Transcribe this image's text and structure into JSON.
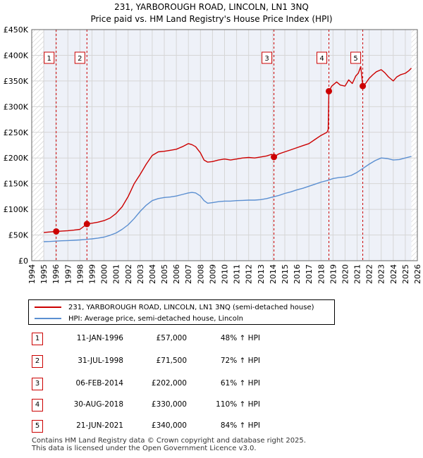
{
  "chart_data": {
    "type": "line",
    "title": "231, YARBOROUGH ROAD, LINCOLN, LN1 3NQ",
    "subtitle": "Price paid vs. HM Land Registry's House Price Index (HPI)",
    "xlim": [
      1994,
      2026
    ],
    "ylim": [
      0,
      450000
    ],
    "x_ticks": [
      1994,
      1995,
      1996,
      1997,
      1998,
      1999,
      2000,
      2001,
      2002,
      2003,
      2004,
      2005,
      2006,
      2007,
      2008,
      2009,
      2010,
      2011,
      2012,
      2013,
      2014,
      2015,
      2016,
      2017,
      2018,
      2019,
      2020,
      2021,
      2022,
      2023,
      2024,
      2025,
      2026
    ],
    "y_ticks": [
      {
        "value": 0,
        "label": "£0"
      },
      {
        "value": 50000,
        "label": "£50K"
      },
      {
        "value": 100000,
        "label": "£100K"
      },
      {
        "value": 150000,
        "label": "£150K"
      },
      {
        "value": 200000,
        "label": "£200K"
      },
      {
        "value": 250000,
        "label": "£250K"
      },
      {
        "value": 300000,
        "label": "£300K"
      },
      {
        "value": 350000,
        "label": "£350K"
      },
      {
        "value": 400000,
        "label": "£400K"
      },
      {
        "value": 450000,
        "label": "£450K"
      }
    ],
    "data_range": [
      1995,
      2025.5
    ],
    "series": [
      {
        "name": "231, YARBOROUGH ROAD, LINCOLN, LN1 3NQ (semi-detached house)",
        "color": "#cc0000",
        "x": [
          1995.0,
          1995.5,
          1996.03,
          1996.5,
          1997.0,
          1997.5,
          1998.0,
          1998.58,
          1999.0,
          1999.5,
          2000.0,
          2000.5,
          2001.0,
          2001.5,
          2002.0,
          2002.5,
          2003.0,
          2003.5,
          2004.0,
          2004.5,
          2005.0,
          2005.5,
          2006.0,
          2006.5,
          2007.0,
          2007.3,
          2007.6,
          2008.0,
          2008.3,
          2008.6,
          2009.0,
          2009.5,
          2010.0,
          2010.5,
          2011.0,
          2011.5,
          2012.0,
          2012.5,
          2013.0,
          2013.5,
          2013.9,
          2014.1,
          2014.5,
          2015.0,
          2015.5,
          2016.0,
          2016.5,
          2017.0,
          2017.5,
          2018.0,
          2018.5,
          2018.6,
          2018.66,
          2018.9,
          2019.3,
          2019.6,
          2020.0,
          2020.3,
          2020.6,
          2020.9,
          2021.1,
          2021.3,
          2021.47,
          2021.7,
          2022.0,
          2022.3,
          2022.6,
          2023.0,
          2023.3,
          2023.6,
          2024.0,
          2024.3,
          2024.6,
          2025.0,
          2025.3,
          2025.5
        ],
        "y": [
          55000,
          56000,
          57000,
          57800,
          58500,
          59500,
          61000,
          71500,
          73000,
          75000,
          78000,
          83000,
          92000,
          105000,
          125000,
          150000,
          168000,
          188000,
          205000,
          212000,
          213000,
          215000,
          217000,
          222000,
          228000,
          226000,
          222000,
          210000,
          196000,
          192000,
          193000,
          196000,
          198000,
          196000,
          198000,
          200000,
          201000,
          200000,
          202000,
          204000,
          207000,
          202000,
          208000,
          212000,
          216000,
          220000,
          224000,
          228000,
          236000,
          244000,
          250000,
          255000,
          330000,
          340000,
          348000,
          342000,
          340000,
          352000,
          345000,
          360000,
          365000,
          378000,
          340000,
          345000,
          355000,
          362000,
          368000,
          372000,
          366000,
          358000,
          350000,
          358000,
          362000,
          365000,
          370000,
          375000
        ]
      },
      {
        "name": "HPI: Average price, semi-detached house, Lincoln",
        "color": "#5b8fd1",
        "x": [
          1995.0,
          1995.5,
          1996.0,
          1996.5,
          1997.0,
          1997.5,
          1998.0,
          1998.5,
          1999.0,
          1999.5,
          2000.0,
          2000.5,
          2001.0,
          2001.5,
          2002.0,
          2002.5,
          2003.0,
          2003.5,
          2004.0,
          2004.5,
          2005.0,
          2005.5,
          2006.0,
          2006.5,
          2007.0,
          2007.3,
          2007.6,
          2008.0,
          2008.3,
          2008.6,
          2009.0,
          2009.5,
          2010.0,
          2010.5,
          2011.0,
          2011.5,
          2012.0,
          2012.5,
          2013.0,
          2013.5,
          2014.0,
          2014.5,
          2015.0,
          2015.5,
          2016.0,
          2016.5,
          2017.0,
          2017.5,
          2018.0,
          2018.5,
          2019.0,
          2019.5,
          2020.0,
          2020.5,
          2021.0,
          2021.5,
          2022.0,
          2022.5,
          2023.0,
          2023.5,
          2024.0,
          2024.5,
          2025.0,
          2025.5
        ],
        "y": [
          37000,
          37500,
          38200,
          38800,
          39200,
          39800,
          40500,
          41500,
          42500,
          44000,
          46000,
          49500,
          54000,
          61000,
          70000,
          82000,
          96000,
          108000,
          117000,
          121000,
          123000,
          124000,
          126000,
          129000,
          132000,
          133000,
          132000,
          126000,
          117000,
          112000,
          113000,
          115000,
          116000,
          116000,
          117000,
          117500,
          118000,
          118000,
          119000,
          121000,
          124000,
          127000,
          131000,
          134000,
          138000,
          141000,
          145000,
          149000,
          153000,
          156000,
          160000,
          162000,
          163000,
          166000,
          172000,
          180000,
          188000,
          195000,
          200000,
          199000,
          196000,
          197000,
          200000,
          203000
        ]
      }
    ],
    "sales": [
      {
        "n": "1",
        "x": 1996.03,
        "y": 57000
      },
      {
        "n": "2",
        "x": 1998.58,
        "y": 71500
      },
      {
        "n": "3",
        "x": 2014.1,
        "y": 202000
      },
      {
        "n": "4",
        "x": 2018.66,
        "y": 330000
      },
      {
        "n": "5",
        "x": 2021.47,
        "y": 340000
      }
    ]
  },
  "legend": [
    {
      "label": "231, YARBOROUGH ROAD, LINCOLN, LN1 3NQ (semi-detached house)",
      "color": "#cc0000"
    },
    {
      "label": "HPI: Average price, semi-detached house, Lincoln",
      "color": "#5b8fd1"
    }
  ],
  "sales_table": [
    {
      "n": "1",
      "date": "11-JAN-1996",
      "price": "£57,000",
      "hpi": "48% ↑ HPI"
    },
    {
      "n": "2",
      "date": "31-JUL-1998",
      "price": "£71,500",
      "hpi": "72% ↑ HPI"
    },
    {
      "n": "3",
      "date": "06-FEB-2014",
      "price": "£202,000",
      "hpi": "61% ↑ HPI"
    },
    {
      "n": "4",
      "date": "30-AUG-2018",
      "price": "£330,000",
      "hpi": "110% ↑ HPI"
    },
    {
      "n": "5",
      "date": "21-JUN-2021",
      "price": "£340,000",
      "hpi": "84% ↑ HPI"
    }
  ],
  "footer": {
    "line1": "Contains HM Land Registry data © Crown copyright and database right 2025.",
    "line2": "This data is licensed under the Open Government Licence v3.0."
  }
}
